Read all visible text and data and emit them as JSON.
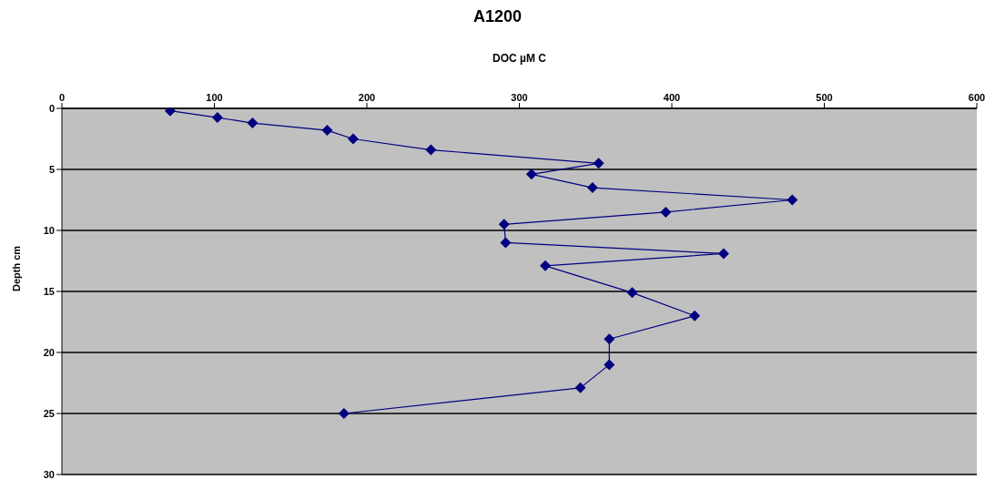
{
  "chart_data": {
    "type": "line",
    "title": "A1200",
    "xlabel": "DOC µM C",
    "ylabel": "Depth cm",
    "x": [
      71,
      102,
      125,
      174,
      191,
      242,
      352,
      308,
      348,
      479,
      396,
      290,
      291,
      434,
      317,
      374,
      415,
      359,
      359,
      340,
      185
    ],
    "series": [
      {
        "color": "#000080",
        "values": [
          0.2,
          0.75,
          1.2,
          1.8,
          2.5,
          3.4,
          4.5,
          5.4,
          6.5,
          7.5,
          8.5,
          9.5,
          11,
          11.9,
          12.9,
          15.1,
          17,
          18.9,
          21,
          22.9,
          25
        ]
      }
    ],
    "xlim": [
      0,
      600
    ],
    "xticks": [
      0,
      100,
      200,
      300,
      400,
      500,
      600
    ],
    "ylim": [
      30,
      0
    ],
    "yticks": [
      0,
      5,
      10,
      15,
      20,
      25,
      30
    ],
    "grid": "y",
    "marker": "diamond",
    "line_style": "solid",
    "legend": false
  }
}
